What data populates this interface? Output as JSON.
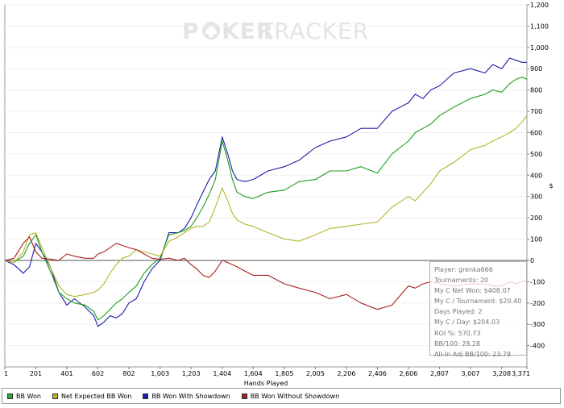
{
  "watermark": {
    "brand_left": "P",
    "brand_mid": "KER",
    "brand_right": "TRACKER"
  },
  "chart_data": {
    "type": "line",
    "title": "",
    "xlabel": "Hands Played",
    "ylabel": "$",
    "xlim": [
      1,
      3371
    ],
    "ylim": [
      -500,
      1200
    ],
    "x_ticks": [
      1,
      201,
      401,
      602,
      802,
      1003,
      1203,
      1404,
      1604,
      1805,
      2005,
      2206,
      2406,
      2606,
      2807,
      3007,
      3208,
      3371
    ],
    "x_tick_labels": [
      "1",
      "201",
      "401",
      "602",
      "802",
      "1,003",
      "1,203",
      "1,404",
      "1,604",
      "1,805",
      "2,005",
      "2,206",
      "2,406",
      "2,606",
      "2,807",
      "3,007",
      "3,208",
      "3,371"
    ],
    "y_ticks": [
      -400,
      -300,
      -200,
      -100,
      0,
      100,
      200,
      300,
      400,
      500,
      600,
      700,
      800,
      900,
      1000,
      1100,
      1200
    ],
    "y_tick_labels": [
      "-400",
      "-300",
      "-200",
      "-100",
      "0",
      "100",
      "200",
      "300",
      "400",
      "500",
      "600",
      "700",
      "800",
      "900",
      "1,000",
      "1,100",
      "1,200"
    ],
    "series": [
      {
        "name": "BB Won With Showdown",
        "color": "#1c1ca8",
        "x": [
          1,
          60,
          120,
          160,
          201,
          240,
          300,
          350,
          401,
          450,
          520,
          575,
          602,
          640,
          680,
          720,
          760,
          802,
          850,
          900,
          950,
          1003,
          1060,
          1120,
          1160,
          1203,
          1240,
          1280,
          1320,
          1360,
          1404,
          1440,
          1470,
          1500,
          1550,
          1604,
          1700,
          1805,
          1900,
          2005,
          2100,
          2206,
          2300,
          2406,
          2500,
          2606,
          2650,
          2700,
          2750,
          2807,
          2900,
          3007,
          3100,
          3150,
          3208,
          3260,
          3300,
          3340,
          3371
        ],
        "values": [
          0,
          -20,
          -60,
          -30,
          80,
          40,
          -40,
          -150,
          -210,
          -180,
          -220,
          -260,
          -310,
          -290,
          -260,
          -270,
          -250,
          -200,
          -180,
          -100,
          -40,
          0,
          130,
          130,
          150,
          200,
          260,
          320,
          380,
          420,
          580,
          500,
          420,
          380,
          370,
          380,
          420,
          440,
          470,
          530,
          560,
          580,
          620,
          620,
          700,
          740,
          780,
          760,
          800,
          820,
          880,
          900,
          880,
          920,
          900,
          950,
          940,
          930,
          930
        ]
      },
      {
        "name": "BB Won",
        "color": "#1c9e1c",
        "x": [
          1,
          60,
          120,
          160,
          201,
          240,
          300,
          350,
          401,
          450,
          520,
          575,
          602,
          640,
          680,
          720,
          760,
          802,
          850,
          900,
          950,
          1003,
          1060,
          1120,
          1160,
          1203,
          1240,
          1280,
          1320,
          1360,
          1404,
          1440,
          1470,
          1500,
          1550,
          1604,
          1700,
          1805,
          1900,
          2005,
          2100,
          2206,
          2300,
          2406,
          2500,
          2606,
          2650,
          2700,
          2750,
          2807,
          2900,
          3007,
          3100,
          3150,
          3208,
          3260,
          3300,
          3340,
          3371
        ],
        "values": [
          0,
          -10,
          20,
          80,
          120,
          40,
          -60,
          -150,
          -180,
          -200,
          -210,
          -240,
          -280,
          -260,
          -230,
          -200,
          -180,
          -150,
          -120,
          -60,
          -20,
          10,
          120,
          130,
          140,
          160,
          200,
          250,
          310,
          380,
          560,
          470,
          380,
          320,
          300,
          290,
          320,
          330,
          370,
          380,
          420,
          420,
          440,
          410,
          500,
          560,
          600,
          620,
          640,
          680,
          720,
          760,
          780,
          800,
          790,
          830,
          850,
          860,
          850
        ]
      },
      {
        "name": "Net Expected BB Won",
        "color": "#b5b52a",
        "x": [
          1,
          60,
          120,
          160,
          201,
          240,
          300,
          350,
          401,
          450,
          520,
          575,
          602,
          640,
          680,
          720,
          760,
          802,
          850,
          900,
          950,
          1003,
          1060,
          1120,
          1160,
          1203,
          1240,
          1280,
          1320,
          1360,
          1404,
          1440,
          1470,
          1500,
          1550,
          1604,
          1700,
          1805,
          1900,
          2005,
          2100,
          2206,
          2300,
          2406,
          2500,
          2606,
          2650,
          2700,
          2750,
          2807,
          2900,
          3007,
          3100,
          3150,
          3208,
          3260,
          3300,
          3340,
          3371
        ],
        "values": [
          0,
          -10,
          40,
          120,
          130,
          60,
          -40,
          -120,
          -160,
          -170,
          -160,
          -150,
          -140,
          -110,
          -60,
          -20,
          10,
          20,
          50,
          40,
          30,
          20,
          90,
          110,
          130,
          150,
          160,
          160,
          180,
          250,
          340,
          280,
          220,
          190,
          170,
          160,
          130,
          100,
          90,
          120,
          150,
          160,
          170,
          180,
          250,
          300,
          280,
          320,
          360,
          420,
          460,
          520,
          540,
          560,
          580,
          600,
          620,
          650,
          680
        ]
      },
      {
        "name": "BB Won Without Showdown",
        "color": "#a82020",
        "x": [
          1,
          60,
          120,
          160,
          201,
          240,
          300,
          350,
          401,
          450,
          520,
          575,
          602,
          640,
          680,
          720,
          760,
          802,
          850,
          900,
          950,
          1003,
          1060,
          1120,
          1160,
          1203,
          1240,
          1280,
          1320,
          1360,
          1404,
          1440,
          1470,
          1500,
          1550,
          1604,
          1700,
          1805,
          1900,
          2005,
          2100,
          2206,
          2300,
          2406,
          2500,
          2606,
          2650,
          2700,
          2750,
          2807,
          2900,
          3007,
          3100,
          3150,
          3208,
          3260,
          3300,
          3340,
          3371
        ],
        "values": [
          0,
          10,
          80,
          110,
          40,
          10,
          5,
          0,
          30,
          20,
          10,
          10,
          30,
          40,
          60,
          80,
          70,
          60,
          50,
          30,
          10,
          5,
          10,
          0,
          10,
          -20,
          -40,
          -70,
          -80,
          -50,
          0,
          -10,
          -20,
          -30,
          -50,
          -70,
          -70,
          -110,
          -130,
          -150,
          -180,
          -160,
          -200,
          -230,
          -210,
          -120,
          -130,
          -110,
          -100,
          -110,
          -120,
          -110,
          -110,
          -120,
          -120,
          -100,
          -110,
          -100,
          -90
        ]
      }
    ]
  },
  "legend": [
    {
      "label": "BB Won",
      "color": "#2fa82f"
    },
    {
      "label": "Net Expected BB Won",
      "color": "#b5b52a"
    },
    {
      "label": "BB Won With Showdown",
      "color": "#1c1ca8"
    },
    {
      "label": "BB Won Without Showdown",
      "color": "#a82020"
    }
  ],
  "stats": [
    "Player: grenka666",
    "Tournaments: 20",
    "My C Net Won: $408.07",
    "My C / Tournament: $20.40",
    "Days Played: 2",
    "My C / Day: $204.03",
    "ROI %: 570.73",
    "BB/100: 28.28",
    "All-In Adj BB/100: 23.78"
  ]
}
